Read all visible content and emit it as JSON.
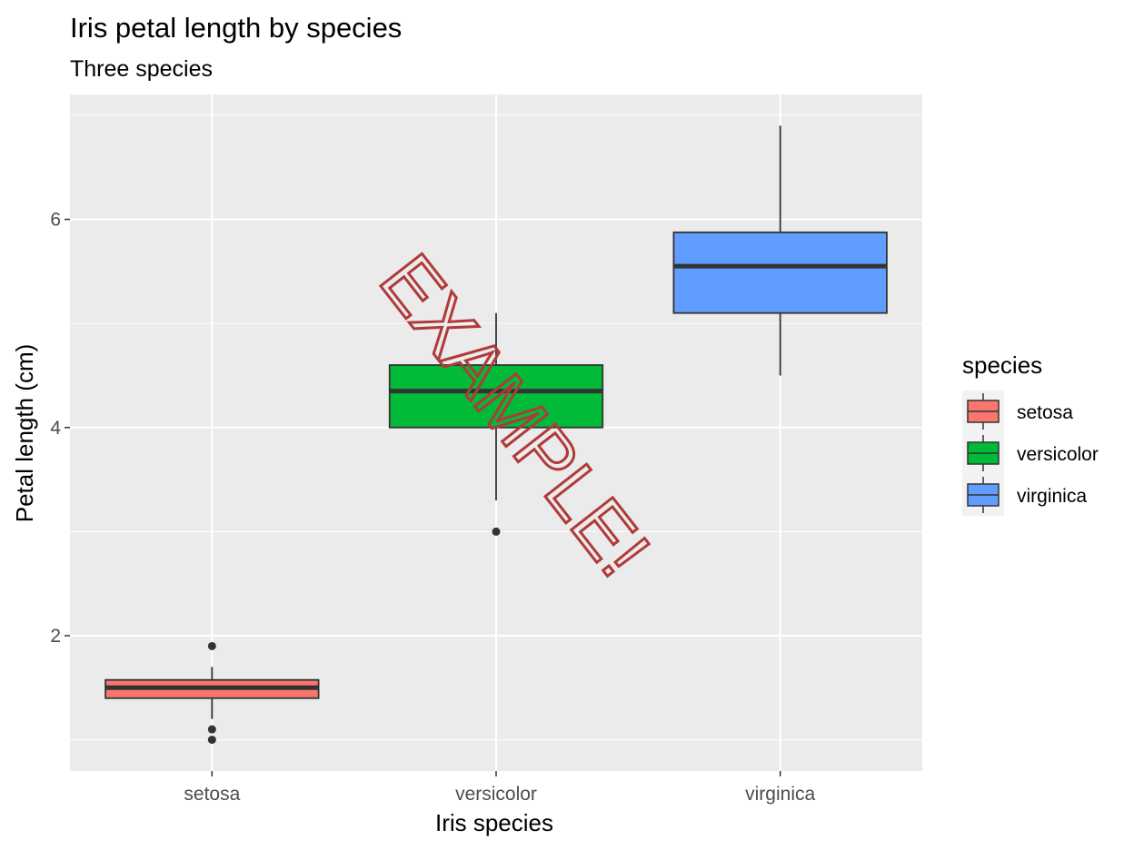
{
  "chart_data": {
    "type": "boxplot",
    "title": "Iris petal length by species",
    "subtitle": "Three species",
    "xlabel": "Iris species",
    "ylabel": "Petal length (cm)",
    "categories": [
      "setosa",
      "versicolor",
      "virginica"
    ],
    "ylim": [
      0.7,
      7.2
    ],
    "yticks": [
      2,
      4,
      6
    ],
    "grid": true,
    "legend": {
      "title": "species",
      "position": "right",
      "entries": [
        "setosa",
        "versicolor",
        "virginica"
      ]
    },
    "series": [
      {
        "category": "setosa",
        "color": "#f8766d",
        "min": 1.2,
        "q1": 1.4,
        "median": 1.5,
        "q3": 1.575,
        "max": 1.7,
        "outliers": [
          1.9,
          1.1,
          1.0
        ]
      },
      {
        "category": "versicolor",
        "color": "#00ba38",
        "min": 3.3,
        "q1": 4.0,
        "median": 4.35,
        "q3": 4.6,
        "max": 5.1,
        "outliers": [
          3.0
        ]
      },
      {
        "category": "virginica",
        "color": "#619cff",
        "min": 4.5,
        "q1": 5.1,
        "median": 5.55,
        "q3": 5.875,
        "max": 6.9,
        "outliers": []
      }
    ],
    "watermark": {
      "text": "EXAMPLE!",
      "color": "#b03a3a"
    }
  }
}
